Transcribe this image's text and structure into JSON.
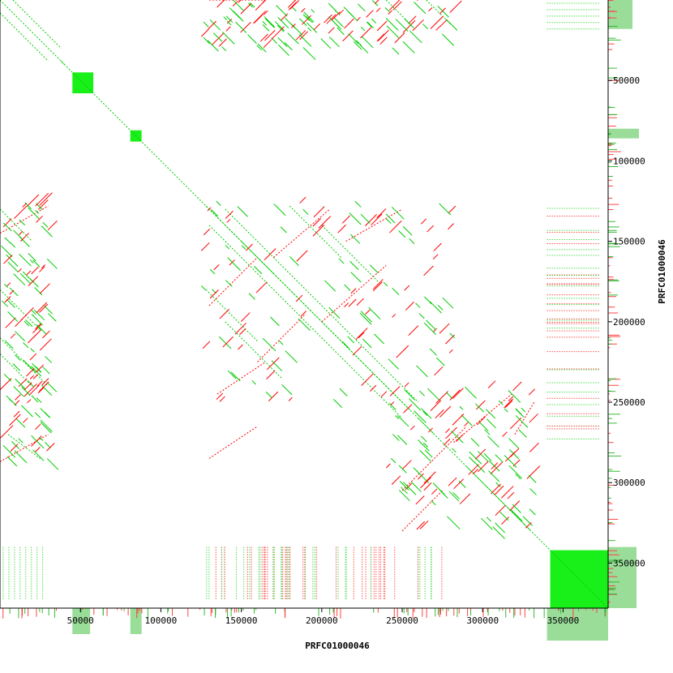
{
  "chart_data": {
    "type": "scatter",
    "title": "",
    "xlabel": "PRFC01000046",
    "ylabel": "PRFC01000046",
    "xlim": [
      0,
      378000
    ],
    "ylim": [
      0,
      378000
    ],
    "x_ticks": [
      50000,
      100000,
      150000,
      200000,
      250000,
      300000,
      350000
    ],
    "y_ticks": [
      50000,
      100000,
      150000,
      200000,
      250000,
      300000,
      350000
    ],
    "x_tick_labels": [
      "50000",
      "100000",
      "150000",
      "200000",
      "250000",
      "300000",
      "350000"
    ],
    "y_tick_labels": [
      "50000",
      "100000",
      "150000",
      "200000",
      "250000",
      "300000",
      "350000"
    ],
    "grid": false,
    "legend": "none",
    "series": [
      {
        "color": "#00cc00",
        "orientation": "forward",
        "segments": [
          [
            0,
            0,
            378000,
            378000
          ],
          [
            0,
            8000,
            30000,
            38000
          ],
          [
            8000,
            0,
            38000,
            30000
          ],
          [
            38000,
            38000,
            40000,
            40000
          ],
          [
            128000,
            128000,
            170000,
            170000
          ],
          [
            130000,
            140000,
            250000,
            260000
          ],
          [
            140000,
            130000,
            260000,
            250000
          ],
          [
            128000,
            180000,
            160000,
            212000
          ],
          [
            180000,
            128000,
            212000,
            160000
          ],
          [
            140000,
            200000,
            175000,
            235000
          ],
          [
            200000,
            140000,
            235000,
            175000
          ],
          [
            150000,
            150000,
            255000,
            255000
          ],
          [
            0,
            130000,
            20000,
            150000
          ],
          [
            0,
            180000,
            25000,
            205000
          ],
          [
            0,
            220000,
            20000,
            240000
          ],
          [
            5000,
            270000,
            25000,
            285000
          ],
          [
            290000,
            290000,
            330000,
            330000
          ],
          [
            260000,
            260000,
            270000,
            270000
          ],
          [
            0,
            210000,
            30000,
            240000
          ],
          [
            240000,
            0,
            255000,
            15000
          ],
          [
            265000,
            0,
            280000,
            15000
          ]
        ],
        "blocks": [
          [
            45000,
            45000,
            58000,
            58000
          ],
          [
            81000,
            81000,
            88000,
            88000
          ],
          [
            342000,
            342000,
            378000,
            378000
          ]
        ]
      },
      {
        "color": "#ff0000",
        "orientation": "reverse",
        "segments": [
          [
            250000,
            305000,
            290000,
            265000
          ],
          [
            250000,
            330000,
            275000,
            305000
          ],
          [
            282000,
            275000,
            318000,
            245000
          ],
          [
            320000,
            270000,
            332000,
            250000
          ],
          [
            130000,
            0,
            165000,
            0
          ],
          [
            130000,
            190000,
            160000,
            160000
          ],
          [
            160000,
            225000,
            190000,
            195000
          ],
          [
            170000,
            160000,
            205000,
            130000
          ],
          [
            200000,
            200000,
            240000,
            165000
          ],
          [
            0,
            145000,
            30000,
            128000
          ],
          [
            0,
            287000,
            30000,
            270000
          ],
          [
            130000,
            285000,
            160000,
            265000
          ],
          [
            135000,
            245000,
            165000,
            225000
          ],
          [
            215000,
            150000,
            250000,
            130000
          ]
        ]
      }
    ],
    "marginal_histograms": {
      "top_right_color": "#00aa00",
      "bottom_fill_color": "#99dd99",
      "red_bar_color": "#ff4444"
    }
  }
}
